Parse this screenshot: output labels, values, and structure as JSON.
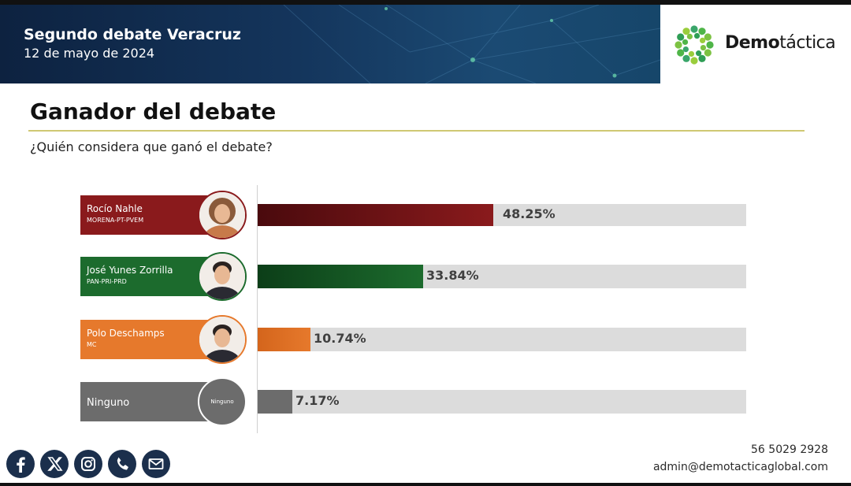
{
  "header": {
    "title": "Segundo debate Veracruz",
    "date": "12 de mayo de 2024",
    "logo_bold": "Demo",
    "logo_light": "táctica"
  },
  "section": {
    "title": "Ganador del debate",
    "question": "¿Quién considera que ganó el debate?"
  },
  "chart_data": {
    "type": "bar",
    "orientation": "horizontal",
    "title": "Ganador del debate",
    "subtitle": "¿Quién considera que ganó el debate?",
    "xlim": [
      0,
      100
    ],
    "grid": false,
    "legend": "none",
    "categories": [
      {
        "name": "Rocío Nahle",
        "party": "MORENA-PT-PVEM",
        "value": 48.25,
        "value_label": "48.25%",
        "color": "#8a1a1c",
        "color_dark": "#4a0a0d",
        "avatar_icon": "person-photo-icon"
      },
      {
        "name": "José Yunes Zorrilla",
        "party": "PAN-PRI-PRD",
        "value": 33.84,
        "value_label": "33.84%",
        "color": "#1c6b2d",
        "color_dark": "#0c3e18",
        "avatar_icon": "person-photo-icon"
      },
      {
        "name": "Polo Deschamps",
        "party": "MC",
        "value": 10.74,
        "value_label": "10.74%",
        "color": "#e6792c",
        "color_dark": "#d4651c",
        "avatar_icon": "person-photo-icon"
      },
      {
        "name": "Ninguno",
        "party": "",
        "value": 7.17,
        "value_label": "7.17%",
        "color": "#6c6c6c",
        "color_dark": "#6c6c6c",
        "avatar_text": "Ninguno"
      }
    ]
  },
  "social": [
    "facebook-icon",
    "x-icon",
    "instagram-icon",
    "phone-icon",
    "mail-icon"
  ],
  "contact": {
    "phone": "56 5029 2928",
    "email": "admin@demotacticaglobal.com"
  }
}
